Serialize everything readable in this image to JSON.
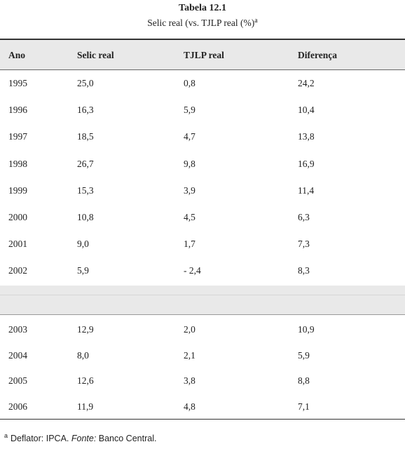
{
  "table": {
    "title": "Tabela 12.1",
    "subtitle": "Selic real (vs. TJLP real (%)",
    "subtitle_marker": "a",
    "columns": [
      "Ano",
      "Selic real",
      "TJLP real",
      "Diferença"
    ],
    "rows_part1": [
      [
        "1995",
        "25,0",
        "0,8",
        "24,2"
      ],
      [
        "1996",
        "16,3",
        "5,9",
        "10,4"
      ],
      [
        "1997",
        "18,5",
        "4,7",
        "13,8"
      ],
      [
        "1998",
        "26,7",
        "9,8",
        "16,9"
      ],
      [
        "1999",
        "15,3",
        "3,9",
        "11,4"
      ],
      [
        "2000",
        "10,8",
        "4,5",
        "6,3"
      ],
      [
        "2001",
        "9,0",
        "1,7",
        "7,3"
      ],
      [
        "2002",
        "5,9",
        "- 2,4",
        "8,3"
      ]
    ],
    "rows_part2": [
      [
        "2003",
        "12,9",
        "2,0",
        "10,9"
      ],
      [
        "2004",
        "8,0",
        "2,1",
        "5,9"
      ],
      [
        "2005",
        "12,6",
        "3,8",
        "8,8"
      ],
      [
        "2006",
        "11,9",
        "4,8",
        "7,1"
      ]
    ]
  },
  "footnote": {
    "marker": "a",
    "text_before": "Deflator: IPCA. ",
    "source_label": "Fonte:",
    "source_text": " Banco Central."
  }
}
